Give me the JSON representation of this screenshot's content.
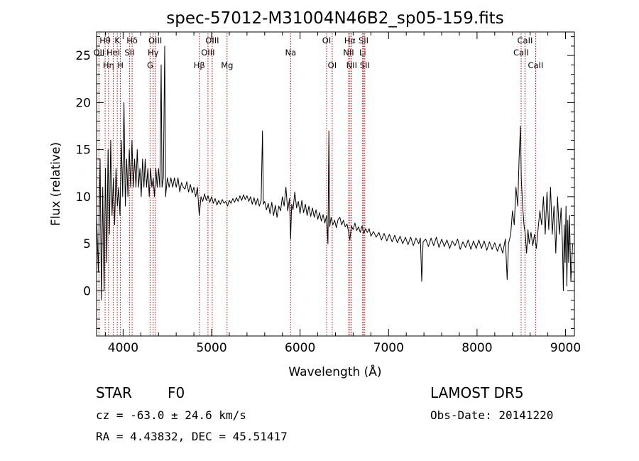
{
  "chart_data": {
    "type": "line",
    "title": "spec-57012-M31004N46B2_sp05-159.fits",
    "xlabel": "Wavelength (Å)",
    "ylabel": "Flux (relative)",
    "xlim": [
      3700,
      9100
    ],
    "ylim": [
      -4.8,
      27.5
    ],
    "x_ticks": [
      4000,
      5000,
      6000,
      7000,
      8000,
      9000
    ],
    "y_ticks": [
      0,
      5,
      10,
      15,
      20,
      25
    ],
    "grid": false,
    "line_color": "#000000",
    "marker_color": "#cc0000",
    "series": [
      {
        "points": [
          [
            3700,
            8
          ],
          [
            3720,
            2
          ],
          [
            3740,
            14
          ],
          [
            3755,
            -1
          ],
          [
            3770,
            11
          ],
          [
            3785,
            0
          ],
          [
            3800,
            13
          ],
          [
            3815,
            3
          ],
          [
            3830,
            15
          ],
          [
            3845,
            6
          ],
          [
            3860,
            16
          ],
          [
            3875,
            8
          ],
          [
            3890,
            12
          ],
          [
            3905,
            7
          ],
          [
            3920,
            13
          ],
          [
            3935,
            9
          ],
          [
            3950,
            11
          ],
          [
            3965,
            8
          ],
          [
            3980,
            16
          ],
          [
            3995,
            10
          ],
          [
            4010,
            20
          ],
          [
            4025,
            9
          ],
          [
            4040,
            14
          ],
          [
            4055,
            10
          ],
          [
            4070,
            15
          ],
          [
            4085,
            11
          ],
          [
            4100,
            16
          ],
          [
            4115,
            11
          ],
          [
            4130,
            14
          ],
          [
            4145,
            11
          ],
          [
            4160,
            15
          ],
          [
            4175,
            11
          ],
          [
            4190,
            13
          ],
          [
            4205,
            10
          ],
          [
            4220,
            14
          ],
          [
            4235,
            11
          ],
          [
            4250,
            14
          ],
          [
            4265,
            11
          ],
          [
            4280,
            13
          ],
          [
            4295,
            10
          ],
          [
            4310,
            13
          ],
          [
            4325,
            11
          ],
          [
            4340,
            12
          ],
          [
            4355,
            10
          ],
          [
            4370,
            13
          ],
          [
            4385,
            11
          ],
          [
            4400,
            13
          ],
          [
            4415,
            11
          ],
          [
            4430,
            24
          ],
          [
            4440,
            11
          ],
          [
            4455,
            12
          ],
          [
            4470,
            26
          ],
          [
            4480,
            10
          ],
          [
            4500,
            12
          ],
          [
            4520,
            11
          ],
          [
            4540,
            12
          ],
          [
            4560,
            11
          ],
          [
            4580,
            12
          ],
          [
            4600,
            11
          ],
          [
            4620,
            12
          ],
          [
            4640,
            10.5
          ],
          [
            4660,
            11.5
          ],
          [
            4680,
            11
          ],
          [
            4700,
            10.8
          ],
          [
            4720,
            11.6
          ],
          [
            4740,
            10.5
          ],
          [
            4760,
            11.3
          ],
          [
            4780,
            10.4
          ],
          [
            4800,
            11
          ],
          [
            4820,
            10
          ],
          [
            4840,
            11
          ],
          [
            4860,
            8
          ],
          [
            4880,
            10
          ],
          [
            4900,
            9.5
          ],
          [
            4920,
            10.3
          ],
          [
            4940,
            9.6
          ],
          [
            4960,
            10.1
          ],
          [
            4980,
            9.4
          ],
          [
            5000,
            10
          ],
          [
            5020,
            9.3
          ],
          [
            5040,
            9.8
          ],
          [
            5060,
            9.1
          ],
          [
            5080,
            9.6
          ],
          [
            5100,
            9.2
          ],
          [
            5120,
            9.7
          ],
          [
            5140,
            9.3
          ],
          [
            5160,
            9.5
          ],
          [
            5180,
            9
          ],
          [
            5200,
            9.6
          ],
          [
            5220,
            9.3
          ],
          [
            5240,
            9.8
          ],
          [
            5260,
            9.4
          ],
          [
            5280,
            9.9
          ],
          [
            5300,
            9.5
          ],
          [
            5320,
            10.1
          ],
          [
            5340,
            9.6
          ],
          [
            5360,
            10.2
          ],
          [
            5380,
            9.7
          ],
          [
            5400,
            10.1
          ],
          [
            5420,
            9.5
          ],
          [
            5440,
            10
          ],
          [
            5460,
            9.2
          ],
          [
            5480,
            9.9
          ],
          [
            5500,
            9.1
          ],
          [
            5520,
            9.8
          ],
          [
            5540,
            9
          ],
          [
            5560,
            9.6
          ],
          [
            5575,
            17
          ],
          [
            5585,
            9.2
          ],
          [
            5600,
            9.5
          ],
          [
            5620,
            8.6
          ],
          [
            5640,
            9.3
          ],
          [
            5660,
            8.2
          ],
          [
            5680,
            9.4
          ],
          [
            5700,
            8
          ],
          [
            5720,
            9.1
          ],
          [
            5740,
            7.8
          ],
          [
            5760,
            9
          ],
          [
            5780,
            8.5
          ],
          [
            5800,
            10
          ],
          [
            5820,
            9
          ],
          [
            5840,
            11
          ],
          [
            5860,
            8.5
          ],
          [
            5880,
            9.8
          ],
          [
            5893,
            5.5
          ],
          [
            5905,
            9.2
          ],
          [
            5920,
            8.6
          ],
          [
            5940,
            10.5
          ],
          [
            5960,
            8.8
          ],
          [
            5980,
            9.5
          ],
          [
            6000,
            8.2
          ],
          [
            6020,
            9.6
          ],
          [
            6040,
            8.3
          ],
          [
            6060,
            9.2
          ],
          [
            6080,
            8
          ],
          [
            6100,
            9
          ],
          [
            6120,
            7.9
          ],
          [
            6140,
            8.8
          ],
          [
            6160,
            7.8
          ],
          [
            6180,
            8.6
          ],
          [
            6200,
            7.6
          ],
          [
            6220,
            8.3
          ],
          [
            6240,
            7.4
          ],
          [
            6260,
            8.1
          ],
          [
            6280,
            7.2
          ],
          [
            6300,
            8
          ],
          [
            6315,
            5
          ],
          [
            6325,
            17
          ],
          [
            6335,
            6.8
          ],
          [
            6350,
            7.8
          ],
          [
            6370,
            7
          ],
          [
            6390,
            7.5
          ],
          [
            6410,
            6.7
          ],
          [
            6430,
            7.6
          ],
          [
            6450,
            7.8
          ],
          [
            6470,
            7
          ],
          [
            6490,
            7.5
          ],
          [
            6510,
            6.8
          ],
          [
            6530,
            7.1
          ],
          [
            6545,
            6.4
          ],
          [
            6563,
            5.4
          ],
          [
            6580,
            6.9
          ],
          [
            6600,
            6.5
          ],
          [
            6620,
            7.2
          ],
          [
            6640,
            6.4
          ],
          [
            6660,
            6.8
          ],
          [
            6680,
            6.2
          ],
          [
            6700,
            6.9
          ],
          [
            6720,
            6.1
          ],
          [
            6740,
            6.6
          ],
          [
            6760,
            6.2
          ],
          [
            6780,
            6.6
          ],
          [
            6800,
            5.8
          ],
          [
            6830,
            6.3
          ],
          [
            6860,
            5.7
          ],
          [
            6890,
            6.2
          ],
          [
            6920,
            5.4
          ],
          [
            6950,
            6.1
          ],
          [
            6980,
            5.3
          ],
          [
            7010,
            6
          ],
          [
            7040,
            5.2
          ],
          [
            7070,
            5.9
          ],
          [
            7100,
            5.1
          ],
          [
            7130,
            5.8
          ],
          [
            7160,
            5
          ],
          [
            7190,
            5.7
          ],
          [
            7220,
            4.9
          ],
          [
            7250,
            5.7
          ],
          [
            7280,
            4.8
          ],
          [
            7310,
            5.6
          ],
          [
            7340,
            5
          ],
          [
            7360,
            5.6
          ],
          [
            7375,
            1
          ],
          [
            7390,
            5.2
          ],
          [
            7420,
            5.5
          ],
          [
            7450,
            4.7
          ],
          [
            7480,
            5.6
          ],
          [
            7510,
            4.8
          ],
          [
            7540,
            5.7
          ],
          [
            7570,
            4.6
          ],
          [
            7600,
            5.5
          ],
          [
            7630,
            4.7
          ],
          [
            7660,
            5.4
          ],
          [
            7690,
            4.5
          ],
          [
            7720,
            5.3
          ],
          [
            7750,
            4.8
          ],
          [
            7780,
            5.5
          ],
          [
            7810,
            4.4
          ],
          [
            7840,
            5.2
          ],
          [
            7870,
            4.6
          ],
          [
            7900,
            5.4
          ],
          [
            7930,
            4.4
          ],
          [
            7960,
            5.3
          ],
          [
            7990,
            4.5
          ],
          [
            8020,
            5.4
          ],
          [
            8050,
            4.5
          ],
          [
            8080,
            5.3
          ],
          [
            8110,
            4.3
          ],
          [
            8140,
            5.2
          ],
          [
            8170,
            4.4
          ],
          [
            8200,
            5.1
          ],
          [
            8230,
            4.2
          ],
          [
            8260,
            5
          ],
          [
            8290,
            4
          ],
          [
            8320,
            5.5
          ],
          [
            8340,
            1.2
          ],
          [
            8355,
            5
          ],
          [
            8380,
            6
          ],
          [
            8400,
            8.5
          ],
          [
            8420,
            7
          ],
          [
            8440,
            11
          ],
          [
            8460,
            9
          ],
          [
            8475,
            14
          ],
          [
            8490,
            17.5
          ],
          [
            8500,
            12
          ],
          [
            8515,
            9
          ],
          [
            8530,
            7
          ],
          [
            8545,
            6
          ],
          [
            8560,
            4
          ],
          [
            8575,
            6.5
          ],
          [
            8590,
            5
          ],
          [
            8610,
            6.2
          ],
          [
            8630,
            4.8
          ],
          [
            8650,
            6
          ],
          [
            8670,
            4.5
          ],
          [
            8690,
            6.6
          ],
          [
            8710,
            8.5
          ],
          [
            8730,
            7
          ],
          [
            8750,
            10
          ],
          [
            8770,
            6
          ],
          [
            8790,
            10.5
          ],
          [
            8810,
            6.5
          ],
          [
            8830,
            11
          ],
          [
            8850,
            6
          ],
          [
            8870,
            9
          ],
          [
            8890,
            4
          ],
          [
            8910,
            10
          ],
          [
            8930,
            6
          ],
          [
            8950,
            8.8
          ],
          [
            8965,
            5
          ],
          [
            8975,
            0
          ],
          [
            8985,
            7
          ],
          [
            8995,
            3
          ],
          [
            9005,
            9
          ],
          [
            9015,
            0.5
          ],
          [
            9025,
            7.5
          ],
          [
            9035,
            3
          ],
          [
            9045,
            8
          ],
          [
            9060,
            1
          ],
          [
            9080,
            5
          ]
        ]
      }
    ],
    "line_markers": [
      {
        "label": "OII",
        "wavelength": 3727,
        "row": 1
      },
      {
        "label": "Hθ",
        "wavelength": 3797,
        "row": 0
      },
      {
        "label": "Hη",
        "wavelength": 3835,
        "row": 2
      },
      {
        "label": "HeI",
        "wavelength": 3889,
        "row": 1
      },
      {
        "label": "K",
        "wavelength": 3934,
        "row": 0
      },
      {
        "label": "H",
        "wavelength": 3969,
        "row": 2
      },
      {
        "label": "SII",
        "wavelength": 4072,
        "row": 1
      },
      {
        "label": "Hδ",
        "wavelength": 4102,
        "row": 0
      },
      {
        "label": "G",
        "wavelength": 4305,
        "row": 2
      },
      {
        "label": "Hγ",
        "wavelength": 4340,
        "row": 1
      },
      {
        "label": "OIII",
        "wavelength": 4363,
        "row": 0
      },
      {
        "label": "Hβ",
        "wavelength": 4861,
        "row": 2
      },
      {
        "label": "OIII",
        "wavelength": 4959,
        "row": 1
      },
      {
        "label": "OIII",
        "wavelength": 5007,
        "row": 0
      },
      {
        "label": "Mg",
        "wavelength": 5175,
        "row": 2
      },
      {
        "label": "Na",
        "wavelength": 5893,
        "row": 1
      },
      {
        "label": "OI",
        "wavelength": 6300,
        "row": 0
      },
      {
        "label": "OI",
        "wavelength": 6363,
        "row": 2
      },
      {
        "label": "NII",
        "wavelength": 6548,
        "row": 1
      },
      {
        "label": "Hα",
        "wavelength": 6563,
        "row": 0
      },
      {
        "label": "NII",
        "wavelength": 6583,
        "row": 2
      },
      {
        "label": "Li",
        "wavelength": 6707,
        "row": 1
      },
      {
        "label": "SII",
        "wavelength": 6717,
        "row": 0
      },
      {
        "label": "SII",
        "wavelength": 6731,
        "row": 2
      },
      {
        "label": "CaII",
        "wavelength": 8498,
        "row": 1
      },
      {
        "label": "CaII",
        "wavelength": 8542,
        "row": 0
      },
      {
        "label": "CaII",
        "wavelength": 8662,
        "row": 2
      }
    ]
  },
  "info": {
    "class": "STAR",
    "subclass": "F0",
    "survey": "LAMOST DR5",
    "cz": "cz = -63.0 ± 24.6 km/s",
    "obs_date": "Obs-Date: 20141220",
    "radec": "RA =   4.43832, DEC =  45.51417"
  }
}
